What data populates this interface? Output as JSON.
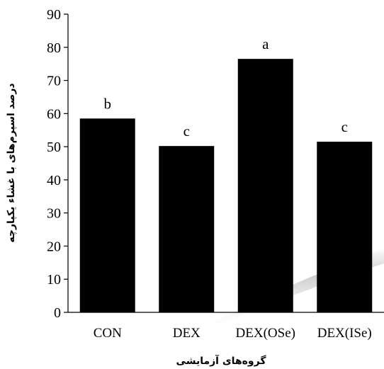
{
  "chart_data": {
    "type": "bar",
    "categories": [
      "CON",
      "DEX",
      "DEX(OSe)",
      "DEX(ISe)"
    ],
    "values": [
      58.5,
      50.2,
      76.5,
      51.5
    ],
    "significance_letters": [
      "b",
      "c",
      "a",
      "c"
    ],
    "title": "",
    "xlabel": "گروه‌های آزمایشی",
    "ylabel": "درصد اسپرم‌های با غشاء یکپارچه",
    "ylim": [
      0,
      90
    ],
    "yticks": [
      0,
      10,
      20,
      30,
      40,
      50,
      60,
      70,
      80,
      90
    ],
    "bar_color": "#000000",
    "grid": false,
    "legend": "none"
  }
}
